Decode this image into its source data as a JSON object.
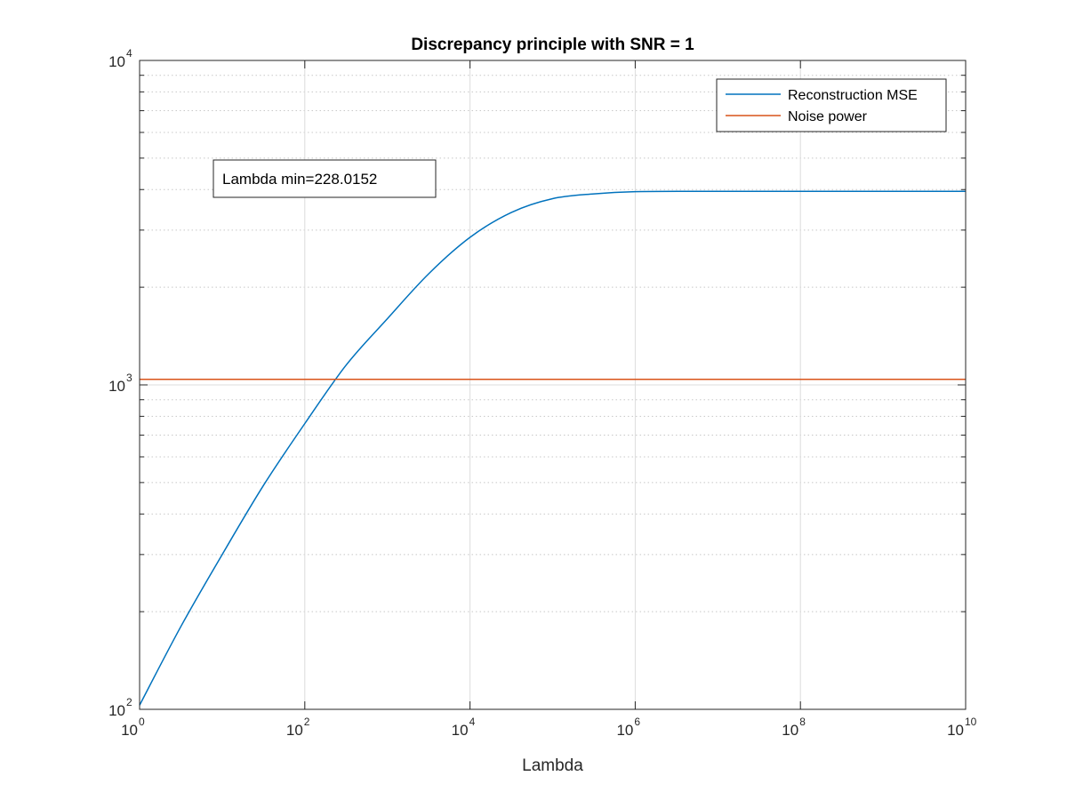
{
  "chart_data": {
    "type": "line",
    "title": "Discrepancy principle with SNR = 1",
    "xlabel": "Lambda",
    "ylabel": "",
    "xscale": "log",
    "yscale": "log",
    "xlim": [
      1,
      10000000000
    ],
    "ylim": [
      100,
      10000
    ],
    "grid": "on (major x and y, minor y)",
    "x_ticks": [
      {
        "base": "10",
        "exp": "0"
      },
      {
        "base": "10",
        "exp": "2"
      },
      {
        "base": "10",
        "exp": "4"
      },
      {
        "base": "10",
        "exp": "6"
      },
      {
        "base": "10",
        "exp": "8"
      },
      {
        "base": "10",
        "exp": "10"
      }
    ],
    "y_ticks": [
      {
        "base": "10",
        "exp": "2"
      },
      {
        "base": "10",
        "exp": "3"
      },
      {
        "base": "10",
        "exp": "4"
      }
    ],
    "legend_position": "top-right",
    "series": [
      {
        "name": "Reconstruction MSE",
        "color": "#0072BD",
        "x": [
          1,
          3.16,
          10,
          31.6,
          100,
          316,
          1000,
          3160,
          10000,
          31600,
          100000,
          316000,
          1000000,
          10000000,
          100000000,
          10000000000
        ],
        "y": [
          103,
          180,
          300,
          490,
          760,
          1150,
          1600,
          2200,
          2850,
          3400,
          3750,
          3880,
          3940,
          3950,
          3950,
          3950
        ]
      },
      {
        "name": "Noise power",
        "color": "#D95319",
        "x": [
          1,
          10000000000
        ],
        "y": [
          1040,
          1040
        ]
      }
    ],
    "annotations": [
      {
        "text": "Lambda min=228.0152"
      }
    ]
  }
}
